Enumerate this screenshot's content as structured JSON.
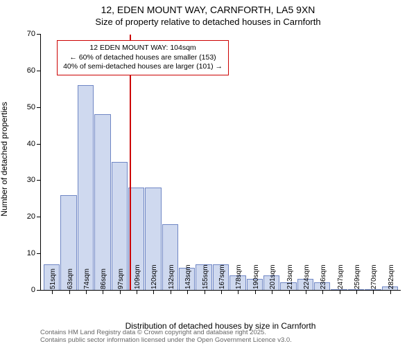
{
  "title_line1": "12, EDEN MOUNT WAY, CARNFORTH, LA5 9XN",
  "title_line2": "Size of property relative to detached houses in Carnforth",
  "chart": {
    "type": "histogram",
    "xlabel": "Distribution of detached houses by size in Carnforth",
    "ylabel": "Number of detached properties",
    "ylim": [
      0,
      70
    ],
    "ytick_step": 10,
    "yticks": [
      0,
      10,
      20,
      30,
      40,
      50,
      60,
      70
    ],
    "bar_fill": "#cfd9ef",
    "bar_stroke": "#6f86c4",
    "background": "#ffffff",
    "axis_color": "#000000",
    "ref_line_x_value": 104,
    "ref_line_color": "#cc0000",
    "annot_border_color": "#cc0000",
    "annot_bg": "#ffffff",
    "annot_line1": "12 EDEN MOUNT WAY: 104sqm",
    "annot_line2": "← 60% of detached houses are smaller (153)",
    "annot_line3": "40% of semi-detached houses are larger (101) →",
    "label_fontsize": 12,
    "tick_fontsize": 11,
    "bins": [
      {
        "label": "51sqm",
        "x": 0,
        "value": 7
      },
      {
        "label": "63sqm",
        "x": 1,
        "value": 26
      },
      {
        "label": "74sqm",
        "x": 2,
        "value": 56
      },
      {
        "label": "86sqm",
        "x": 3,
        "value": 48
      },
      {
        "label": "97sqm",
        "x": 4,
        "value": 35
      },
      {
        "label": "109sqm",
        "x": 5,
        "value": 28
      },
      {
        "label": "120sqm",
        "x": 6,
        "value": 28
      },
      {
        "label": "132sqm",
        "x": 7,
        "value": 18
      },
      {
        "label": "143sqm",
        "x": 8,
        "value": 6
      },
      {
        "label": "155sqm",
        "x": 9,
        "value": 7
      },
      {
        "label": "167sqm",
        "x": 10,
        "value": 7
      },
      {
        "label": "178sqm",
        "x": 11,
        "value": 4
      },
      {
        "label": "190sqm",
        "x": 12,
        "value": 3
      },
      {
        "label": "201sqm",
        "x": 13,
        "value": 4
      },
      {
        "label": "213sqm",
        "x": 14,
        "value": 2
      },
      {
        "label": "224sqm",
        "x": 15,
        "value": 3
      },
      {
        "label": "236sqm",
        "x": 16,
        "value": 2
      },
      {
        "label": "247sqm",
        "x": 17,
        "value": 0
      },
      {
        "label": "259sqm",
        "x": 18,
        "value": 0
      },
      {
        "label": "270sqm",
        "x": 19,
        "value": 0
      },
      {
        "label": "282sqm",
        "x": 20,
        "value": 1
      }
    ]
  },
  "footer": {
    "line1": "Contains HM Land Registry data © Crown copyright and database right 2025.",
    "line2": "Contains public sector information licensed under the Open Government Licence v3.0.",
    "color": "#666666"
  }
}
